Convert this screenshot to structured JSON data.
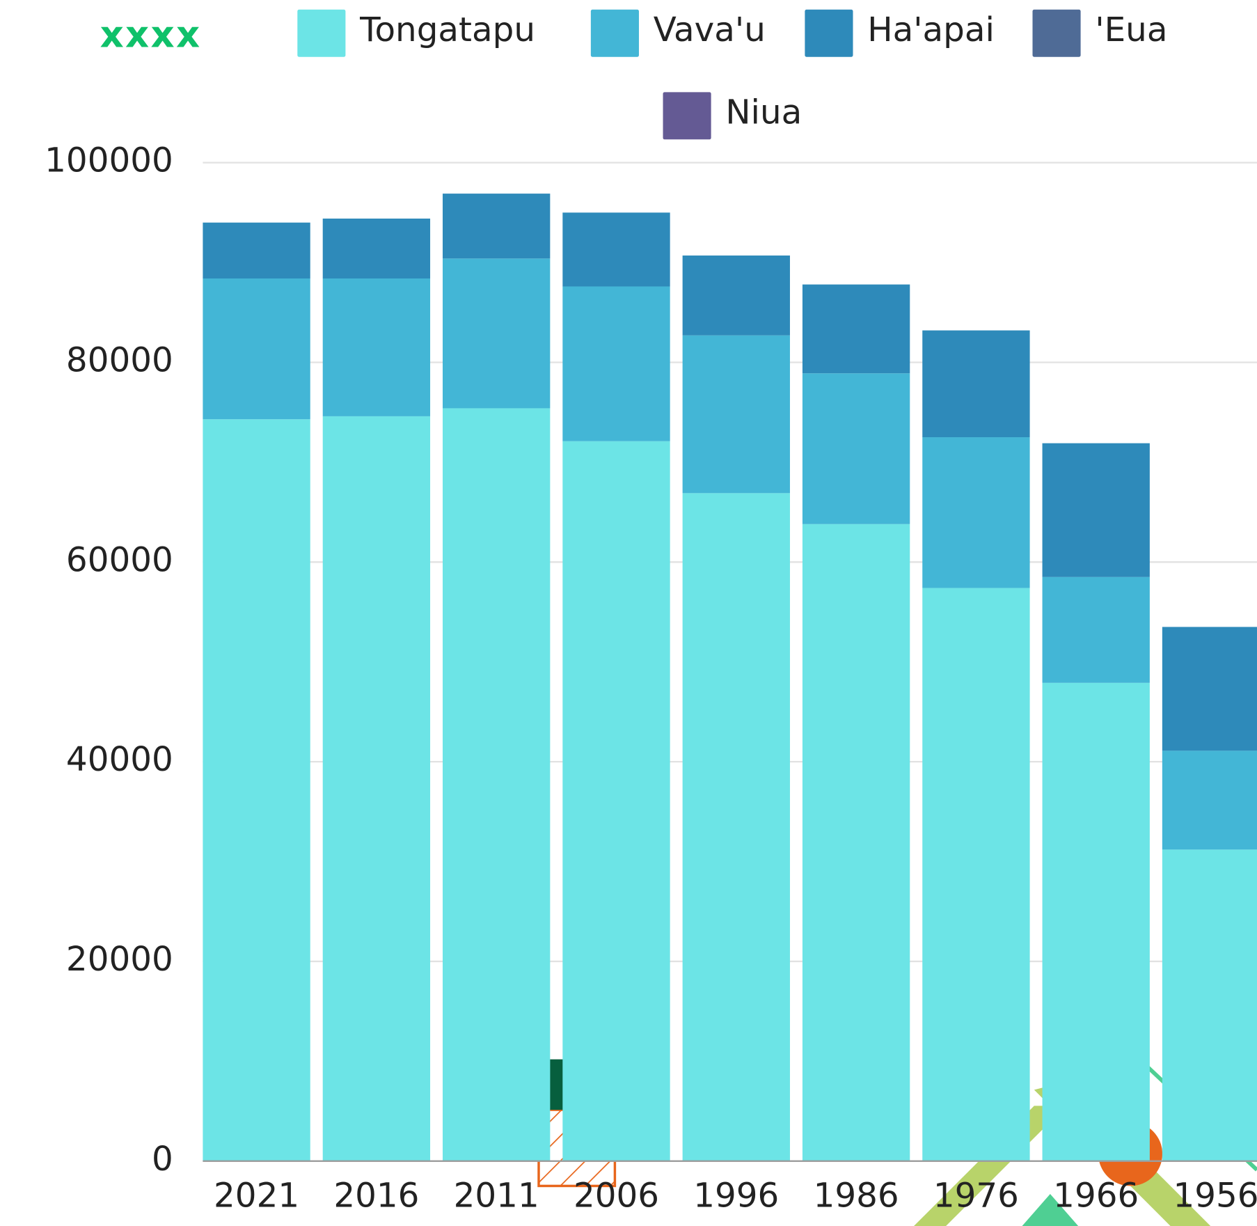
{
  "header": {
    "logo": "xxxx"
  },
  "chart_data": {
    "type": "stacked-bar",
    "categories": [
      "2021",
      "2016",
      "2011",
      "2006",
      "1996",
      "1986",
      "1976",
      "1966",
      "1956"
    ],
    "series": [
      {
        "name": "Tongatapu",
        "color": "#6ce4e6",
        "values": [
          74300,
          74600,
          75400,
          72100,
          66900,
          63800,
          57400,
          47900,
          31200
        ]
      },
      {
        "name": "Vava'u",
        "color": "#43b6d6",
        "values": [
          14100,
          13800,
          15000,
          15500,
          15800,
          15100,
          15100,
          10600,
          9900
        ]
      },
      {
        "name": "Ha'apai",
        "color": "#2e8aba",
        "values": [
          5600,
          6000,
          6500,
          7400,
          8000,
          8900,
          10700,
          13400,
          12400
        ]
      },
      {
        "name": "'Eua",
        "color": "#4f6b96",
        "values": [
          null,
          null,
          null,
          null,
          null,
          null,
          null,
          null,
          null
        ]
      },
      {
        "name": "Niua",
        "color": "#645a94",
        "values": [
          null,
          null,
          null,
          null,
          null,
          null,
          null,
          null,
          null
        ]
      }
    ],
    "ylim": [
      0,
      100000
    ],
    "yticks": [
      0,
      20000,
      40000,
      60000,
      80000,
      100000
    ],
    "grid": true,
    "legend": "top"
  }
}
